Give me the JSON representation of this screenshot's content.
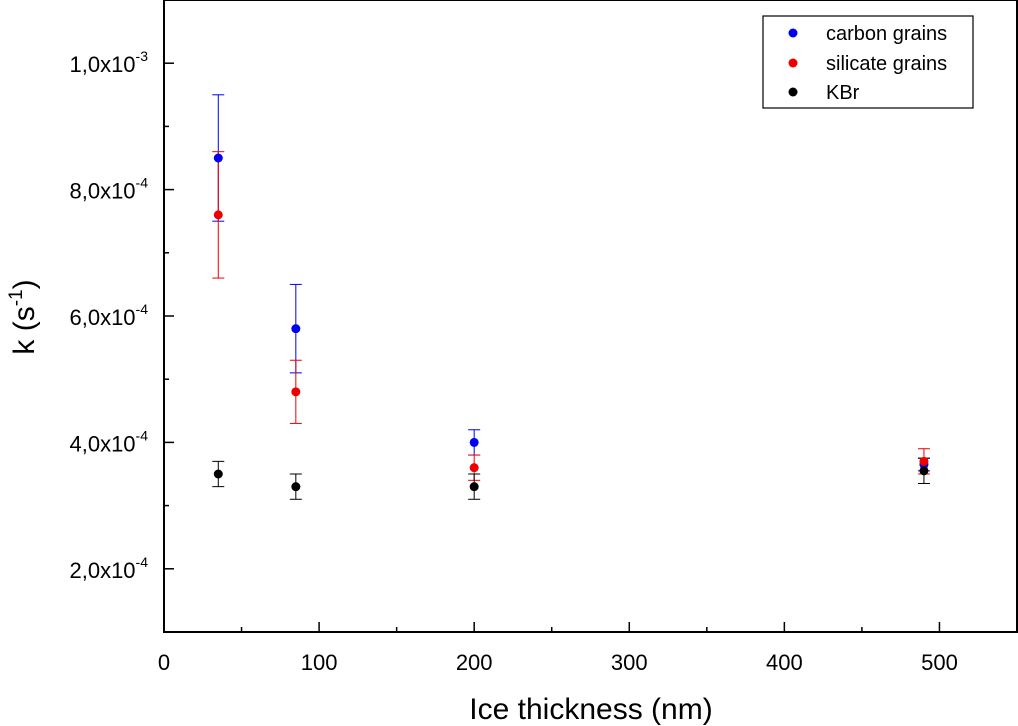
{
  "chart_data": {
    "type": "scatter",
    "xlabel": "Ice thickness (nm)",
    "ylabel": {
      "base": "k (s",
      "sup": "-1",
      "close": ")"
    },
    "xlim": [
      0,
      550
    ],
    "ylim": [
      0.0001,
      0.0011
    ],
    "x_ticks": [
      {
        "value": 0,
        "label": "0"
      },
      {
        "value": 100,
        "label": "100"
      },
      {
        "value": 200,
        "label": "200"
      },
      {
        "value": 300,
        "label": "300"
      },
      {
        "value": 400,
        "label": "400"
      },
      {
        "value": 500,
        "label": "500"
      }
    ],
    "y_ticks": [
      {
        "value": 0.0002,
        "mantissa": "2,0x10",
        "exponent": "-4"
      },
      {
        "value": 0.0004,
        "mantissa": "4,0x10",
        "exponent": "-4"
      },
      {
        "value": 0.0006,
        "mantissa": "6,0x10",
        "exponent": "-4"
      },
      {
        "value": 0.0008,
        "mantissa": "8,0x10",
        "exponent": "-4"
      },
      {
        "value": 0.001,
        "mantissa": "1,0x10",
        "exponent": "-3"
      }
    ],
    "legend_position": "top-right",
    "series": [
      {
        "name": "carbon grains",
        "color": "#0000ee",
        "points": [
          {
            "x": 35,
            "y": 0.00085,
            "err": 0.0001
          },
          {
            "x": 85,
            "y": 0.00058,
            "err": 7e-05
          },
          {
            "x": 200,
            "y": 0.0004,
            "err": 2e-05
          },
          {
            "x": 490,
            "y": 0.000365,
            "err": 1e-05
          }
        ]
      },
      {
        "name": "silicate grains",
        "color": "#ee0000",
        "points": [
          {
            "x": 35,
            "y": 0.00076,
            "err": 0.0001
          },
          {
            "x": 85,
            "y": 0.00048,
            "err": 5e-05
          },
          {
            "x": 200,
            "y": 0.00036,
            "err": 2e-05
          },
          {
            "x": 490,
            "y": 0.00037,
            "err": 2e-05
          }
        ]
      },
      {
        "name": "KBr",
        "color": "#000000",
        "points": [
          {
            "x": 35,
            "y": 0.00035,
            "err": 2e-05
          },
          {
            "x": 85,
            "y": 0.00033,
            "err": 2e-05
          },
          {
            "x": 200,
            "y": 0.00033,
            "err": 2e-05
          },
          {
            "x": 490,
            "y": 0.000355,
            "err": 2e-05
          }
        ]
      }
    ]
  }
}
